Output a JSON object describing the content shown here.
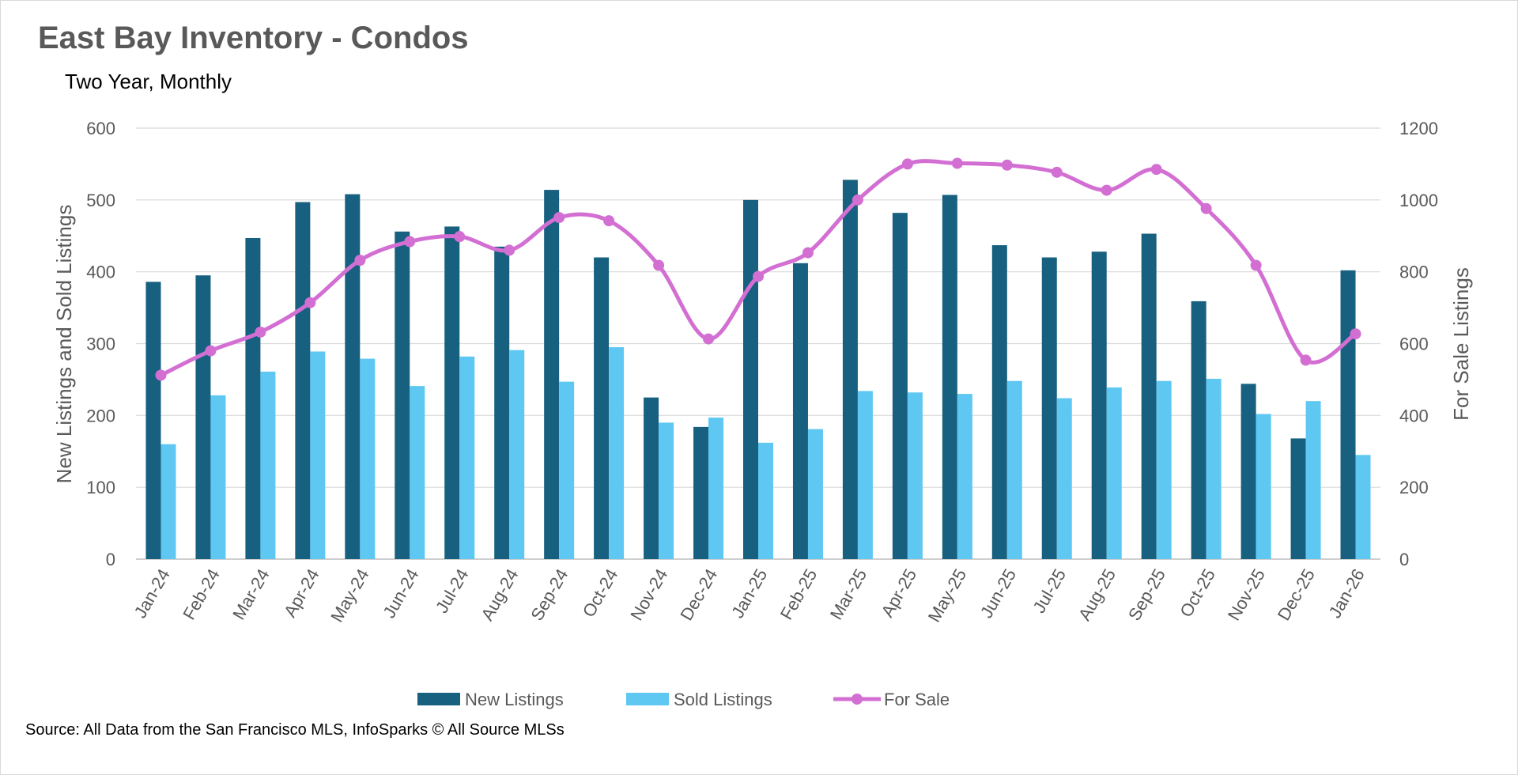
{
  "title": "East Bay Inventory - Condos",
  "subtitle": "Two Year, Monthly",
  "source": "Source: All Data from the San Francisco MLS, InfoSparks © All Source MLSs",
  "chart_data": {
    "type": "bar",
    "categories": [
      "Jan-24",
      "Feb-24",
      "Mar-24",
      "Apr-24",
      "May-24",
      "Jun-24",
      "Jul-24",
      "Aug-24",
      "Sep-24",
      "Oct-24",
      "Nov-24",
      "Dec-24",
      "Jan-25",
      "Feb-25",
      "Mar-25",
      "Apr-25",
      "May-25",
      "Jun-25",
      "Jul-25",
      "Aug-25",
      "Sep-25",
      "Oct-25",
      "Nov-25",
      "Dec-25",
      "Jan-26"
    ],
    "ylabel": "New Listings and Sold Listings",
    "y2label": "For Sale Listings",
    "ylim": [
      0,
      600
    ],
    "y2lim": [
      0,
      1200
    ],
    "yticks": [
      0,
      100,
      200,
      300,
      400,
      500,
      600
    ],
    "y2ticks": [
      0,
      200,
      400,
      600,
      800,
      1000,
      1200
    ],
    "grid": true,
    "legend_position": "bottom",
    "series": [
      {
        "name": "New Listings",
        "type": "bar",
        "axis": "left",
        "color": "#17607f",
        "values": [
          386,
          395,
          447,
          497,
          508,
          456,
          463,
          435,
          514,
          420,
          225,
          184,
          500,
          412,
          528,
          482,
          507,
          437,
          420,
          428,
          453,
          359,
          244,
          168,
          402
        ]
      },
      {
        "name": "Sold Listings",
        "type": "bar",
        "axis": "left",
        "color": "#5ec8f2",
        "values": [
          160,
          228,
          261,
          289,
          279,
          241,
          282,
          291,
          247,
          295,
          190,
          197,
          162,
          181,
          234,
          232,
          230,
          248,
          224,
          239,
          248,
          251,
          202,
          220,
          145
        ]
      },
      {
        "name": "For Sale",
        "type": "line",
        "axis": "right",
        "color": "#d36fd3",
        "values": [
          512,
          580,
          632,
          714,
          832,
          884,
          898,
          860,
          951,
          942,
          818,
          613,
          787,
          853,
          1000,
          1100,
          1102,
          1097,
          1077,
          1027,
          1085,
          976,
          818,
          554,
          627
        ]
      }
    ]
  }
}
